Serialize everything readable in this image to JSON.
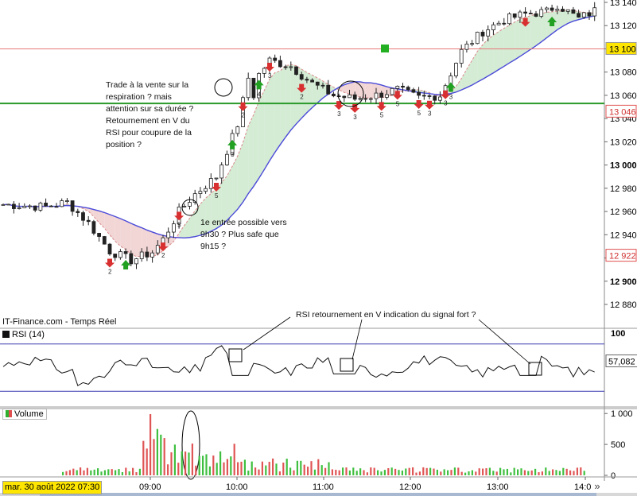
{
  "chart_data": [
    {
      "type": "candlestick",
      "source_label": "IT-Finance.com - Temps Réel",
      "ylim": [
        12860,
        13150
      ],
      "y_ticks": [
        "13 140",
        "13 120",
        "13 100",
        "13 080",
        "13 060",
        "13 040",
        "13 020",
        "13 000",
        "12 980",
        "12 960",
        "12 940",
        "12 920",
        "12 900",
        "12 880"
      ],
      "price_markers": [
        {
          "label": "13 100",
          "style": "yellow"
        },
        {
          "label": "13 046",
          "style": "red"
        },
        {
          "label": "12 922",
          "style": "red"
        }
      ],
      "horizontal_lines": [
        {
          "value": 13100,
          "color": "#e87878"
        },
        {
          "value": 13053,
          "color": "#2a9a2a"
        }
      ],
      "markers": [
        {
          "t": 20,
          "dir": "down",
          "count": "2"
        },
        {
          "t": 23,
          "dir": "up",
          "count": ""
        },
        {
          "t": 30,
          "dir": "down",
          "count": "2"
        },
        {
          "t": 33,
          "dir": "down",
          "count": "5"
        },
        {
          "t": 40,
          "dir": "down",
          "count": "5"
        },
        {
          "t": 43,
          "dir": "up",
          "count": "3"
        },
        {
          "t": 45,
          "dir": "down",
          "count": "2"
        },
        {
          "t": 48,
          "dir": "up",
          "count": "4"
        },
        {
          "t": 50,
          "dir": "down",
          "count": "3"
        },
        {
          "t": 56,
          "dir": "down",
          "count": "2"
        },
        {
          "t": 63,
          "dir": "down",
          "count": "3"
        },
        {
          "t": 66,
          "dir": "down",
          "count": "3"
        },
        {
          "t": 71,
          "dir": "down",
          "count": "5"
        },
        {
          "t": 74,
          "dir": "down",
          "count": "5"
        },
        {
          "t": 78,
          "dir": "down",
          "count": "5"
        },
        {
          "t": 80,
          "dir": "down",
          "count": "3"
        },
        {
          "t": 83,
          "dir": "down",
          "count": "3"
        },
        {
          "t": 84,
          "dir": "up",
          "count": "3"
        },
        {
          "t": 98,
          "dir": "down",
          "count": ""
        },
        {
          "t": 103,
          "dir": "up",
          "count": ""
        }
      ],
      "annotations": [
        {
          "lines": [
            "Trade à la vente sur la",
            "respiration ? mais",
            "attention sur sa durée ?",
            "Retournement en V du",
            "RSI pour coupure de la",
            "position ?"
          ]
        },
        {
          "lines": [
            "1e entrée possible vers",
            "9h30 ? Plus safe que",
            "9h15 ?"
          ]
        }
      ]
    },
    {
      "type": "line",
      "title": "RSI (14)",
      "ylim": [
        0,
        100
      ],
      "y_ticks": [
        "100"
      ],
      "levels": [
        80,
        20
      ],
      "last_value": "57,082",
      "annotation": "RSI retournement en V indication du signal fort ?"
    },
    {
      "type": "bar",
      "title": "Volume",
      "ylim": [
        0,
        1080
      ],
      "y_ticks": [
        "1 000",
        "500",
        "0"
      ]
    }
  ],
  "time_axis": {
    "labels": [
      "09:00",
      "10:00",
      "11:00",
      "12:00",
      "13:00",
      "14:0"
    ],
    "date_label": "mar. 30 août 2022 07:30",
    "nav_label": "»"
  }
}
